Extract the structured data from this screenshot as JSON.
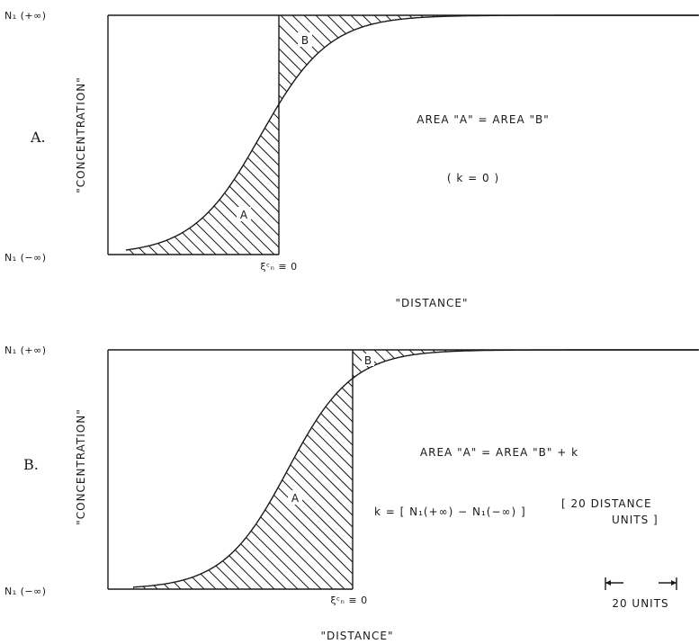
{
  "panels": [
    {
      "label": "A.",
      "y_top_label": "N₁ (+∞)",
      "y_bottom_label": "N₁ (−∞)",
      "y_axis_label": "\"CONCENTRATION\"",
      "x_axis_label": "\"DISTANCE\"",
      "boundary_label": "ξᶜₙ ≡ 0",
      "area_a": "A",
      "area_b": "B",
      "equation_1": "AREA \"A\" = AREA \"B\"",
      "equation_2": "( k = 0 )"
    },
    {
      "label": "B.",
      "y_top_label": "N₁ (+∞)",
      "y_bottom_label": "N₁ (−∞)",
      "y_axis_label": "\"CONCENTRATION\"",
      "x_axis_label": "\"DISTANCE\"",
      "boundary_label": "ξᶜₙ ≡ 0",
      "area_a": "A",
      "area_b": "B",
      "equation_1": "AREA \"A\" = AREA \"B\" + k",
      "equation_2": "k = [ N₁(+∞) − N₁(−∞) ]",
      "equation_3": "[ 20 DISTANCE",
      "equation_4": "UNITS ]",
      "scale_label": "20 UNITS"
    }
  ]
}
